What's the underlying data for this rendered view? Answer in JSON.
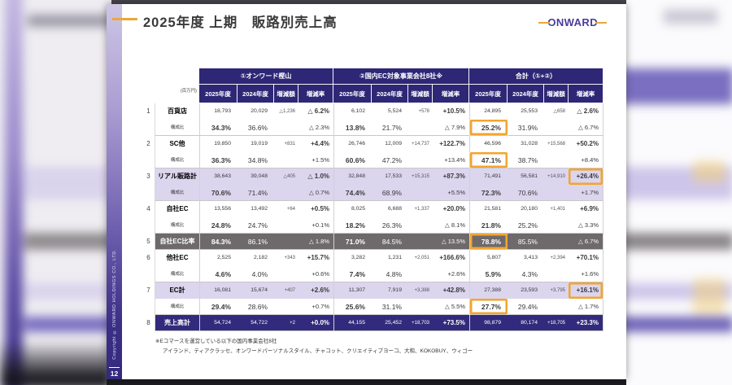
{
  "slide": {
    "title": "2025年度 上期　販路別売上高",
    "logo": "ONWARD",
    "page_number": "12",
    "copyright": "Copyright © ONWARD HOLDINGS CO., LTD.",
    "footnote_line1": "※Eコマースを運営している以下の国内事業会社8社",
    "footnote_line2": "アイランド、ティアクラッセ、オンワードパーソナルスタイル、チャコット、クリエイティブヨーコ、大和、KOKOBUY、ウィゴー"
  },
  "table": {
    "unit_label": "(百万円)",
    "group_headers": [
      "①オンワード樫山",
      "②国内EC対象事業会社8社※",
      "合計（①+②）"
    ],
    "column_headers": [
      "2025年度",
      "2024年度",
      "増減額",
      "増減率"
    ],
    "kosei_label": "構成比",
    "rows": [
      {
        "no": "1",
        "label": "百貨店",
        "bg": [
          "white",
          "white"
        ],
        "main": [
          "18,793",
          "20,029",
          "△1,236",
          "△ 6.2%",
          "6,102",
          "5,524",
          "+578",
          "+10.5%",
          "24,895",
          "25,553",
          "△658",
          "△ 2.6%"
        ],
        "kosei": [
          "34.3%",
          "36.6%",
          "",
          "△ 2.3%",
          "13.8%",
          "21.7%",
          "",
          "△ 7.9%",
          "25.2%",
          "31.9%",
          "",
          "△ 6.7%"
        ],
        "hl_main": [],
        "hl_kosei": [
          8
        ]
      },
      {
        "no": "2",
        "label": "SC他",
        "bg": [
          "white",
          "white"
        ],
        "main": [
          "19,850",
          "19,019",
          "+831",
          "+4.4%",
          "26,746",
          "12,009",
          "+14,737",
          "+122.7%",
          "46,596",
          "31,028",
          "+15,568",
          "+50.2%"
        ],
        "kosei": [
          "36.3%",
          "34.8%",
          "",
          "+1.5%",
          "60.6%",
          "47.2%",
          "",
          "+13.4%",
          "47.1%",
          "38.7%",
          "",
          "+8.4%"
        ],
        "hl_main": [],
        "hl_kosei": [
          8
        ]
      },
      {
        "no": "3",
        "label": "リアル販路計",
        "bg": [
          "purple",
          "purple"
        ],
        "main": [
          "38,643",
          "39,048",
          "△405",
          "△ 1.0%",
          "32,848",
          "17,533",
          "+15,315",
          "+87.3%",
          "71,491",
          "56,581",
          "+14,910",
          "+26.4%"
        ],
        "kosei": [
          "70.6%",
          "71.4%",
          "",
          "△ 0.7%",
          "74.4%",
          "68.9%",
          "",
          "+5.5%",
          "72.3%",
          "70.6%",
          "",
          "+1.7%"
        ],
        "hl_main": [
          11
        ],
        "hl_kosei": []
      },
      {
        "no": "4",
        "label": "自社EC",
        "bg": [
          "white",
          "white"
        ],
        "main": [
          "13,556",
          "13,492",
          "+64",
          "+0.5%",
          "8,025",
          "6,688",
          "+1,337",
          "+20.0%",
          "21,581",
          "20,180",
          "+1,401",
          "+6.9%"
        ],
        "kosei": [
          "24.8%",
          "24.7%",
          "",
          "+0.1%",
          "18.2%",
          "26.3%",
          "",
          "△ 8.1%",
          "21.8%",
          "25.2%",
          "",
          "△ 3.3%"
        ],
        "hl_main": [],
        "hl_kosei": []
      },
      {
        "no": "5",
        "label": "自社EC比率",
        "bg": [
          "gray"
        ],
        "pct_row": true,
        "main": [
          "84.3%",
          "86.1%",
          "",
          "△ 1.8%",
          "71.0%",
          "84.5%",
          "",
          "△ 13.5%",
          "78.8%",
          "85.5%",
          "",
          "△ 6.7%"
        ],
        "hl_main": [
          8
        ],
        "hl_kosei": []
      },
      {
        "no": "6",
        "label": "他社EC",
        "bg": [
          "white",
          "white"
        ],
        "main": [
          "2,525",
          "2,182",
          "+343",
          "+15.7%",
          "3,282",
          "1,231",
          "+2,051",
          "+166.6%",
          "5,807",
          "3,413",
          "+2,394",
          "+70.1%"
        ],
        "kosei": [
          "4.6%",
          "4.0%",
          "",
          "+0.6%",
          "7.4%",
          "4.8%",
          "",
          "+2.6%",
          "5.9%",
          "4.3%",
          "",
          "+1.6%"
        ],
        "hl_main": [],
        "hl_kosei": []
      },
      {
        "no": "7",
        "label": "EC計",
        "bg": [
          "purple",
          "white"
        ],
        "main": [
          "16,081",
          "15,674",
          "+407",
          "+2.6%",
          "11,307",
          "7,919",
          "+3,388",
          "+42.8%",
          "27,388",
          "23,593",
          "+3,795",
          "+16.1%"
        ],
        "kosei": [
          "29.4%",
          "28.6%",
          "",
          "+0.7%",
          "25.6%",
          "31.1%",
          "",
          "△ 5.5%",
          "27.7%",
          "29.4%",
          "",
          "△ 1.7%"
        ],
        "hl_main": [
          11
        ],
        "hl_kosei": [
          8
        ]
      },
      {
        "no": "8",
        "label": "売上高計",
        "bg": [
          "total"
        ],
        "main": [
          "54,724",
          "54,722",
          "+2",
          "+0.0%",
          "44,155",
          "25,452",
          "+18,703",
          "+73.5%",
          "98,879",
          "80,174",
          "+18,705",
          "+23.3%"
        ],
        "hl_main": [],
        "hl_kosei": []
      }
    ]
  },
  "colors": {
    "header_bg": "#2e2776",
    "row_purple": "#dbd5ee",
    "row_gray": "#6e696b",
    "row_total": "#322a7c",
    "highlight": "#f3a52d",
    "gold": "#e9a83b",
    "logo": "#483c9c"
  }
}
